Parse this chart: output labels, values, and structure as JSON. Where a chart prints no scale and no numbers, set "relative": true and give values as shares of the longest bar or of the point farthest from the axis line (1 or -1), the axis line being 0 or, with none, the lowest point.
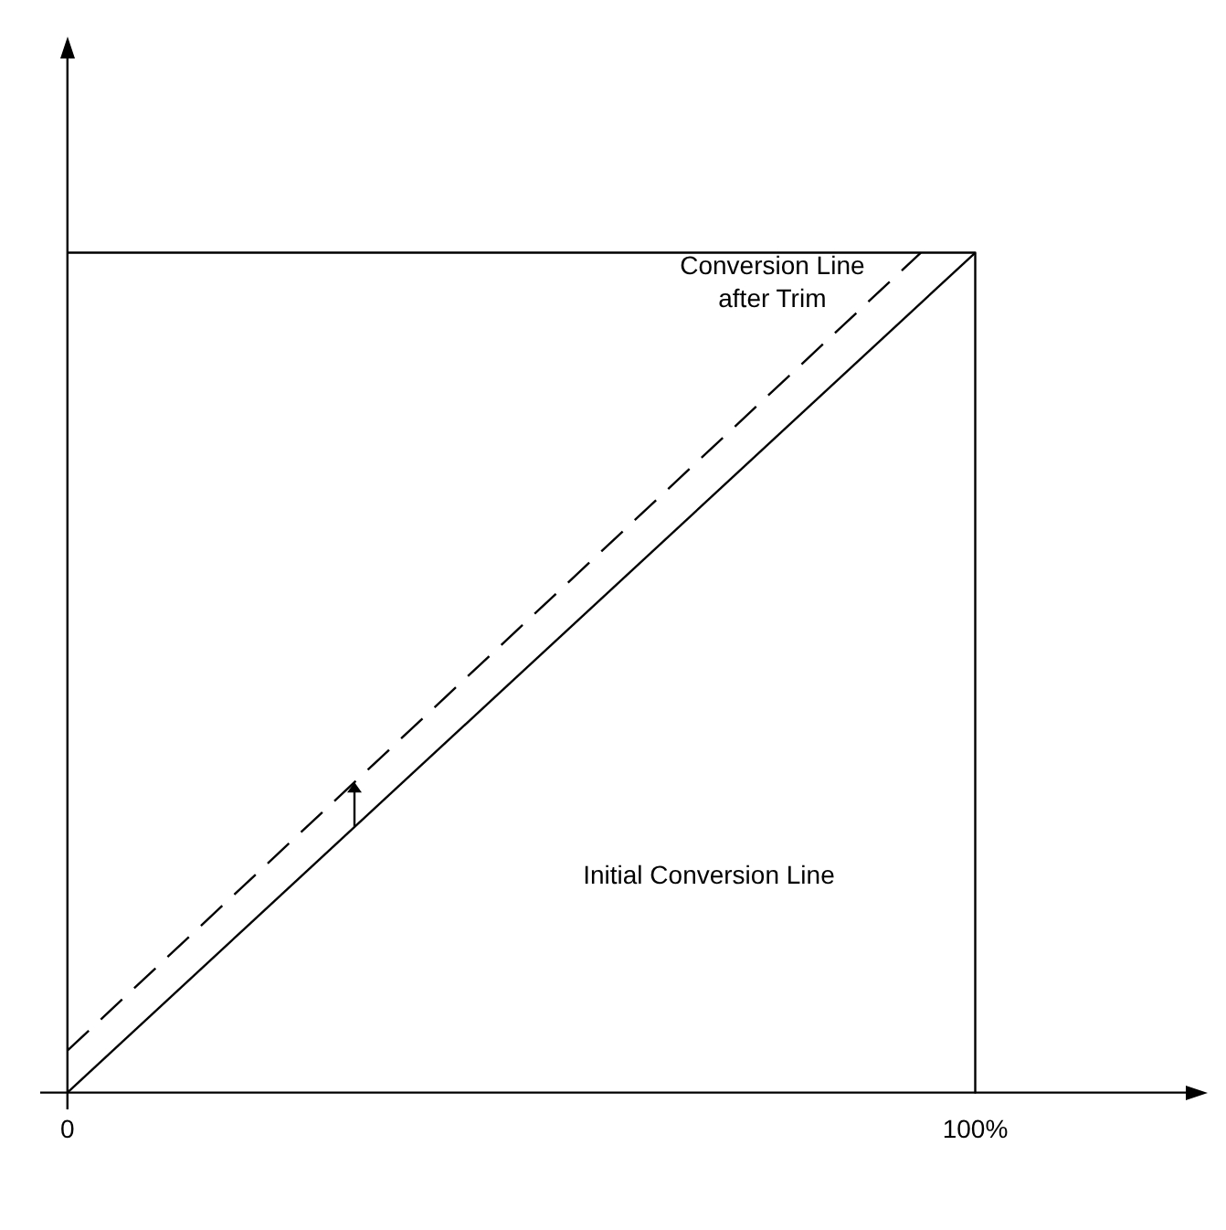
{
  "chart_data": {
    "type": "line",
    "relative": true,
    "tick_labels": "x",
    "marker": "none",
    "xlim": [
      -3,
      124
    ],
    "xticks": [
      {
        "value": 0,
        "label": "0"
      },
      {
        "value": 100,
        "label": "100%"
      }
    ],
    "series": [
      {
        "color": "#000000",
        "x": [
          0,
          100
        ],
        "values": [
          0,
          1
        ],
        "line_style": "solid"
      },
      {
        "color": "#000000",
        "x": [
          0,
          94
        ],
        "values": [
          0.05,
          1
        ],
        "line_style": "dashed"
      },
      {
        "color": "#000000",
        "x": [
          0,
          100,
          100
        ],
        "values": [
          1,
          1,
          0
        ],
        "line_style": "solid"
      }
    ],
    "annotations": [
      "Conversion Line\nafter Trim",
      "Initial Conversion Line"
    ]
  }
}
